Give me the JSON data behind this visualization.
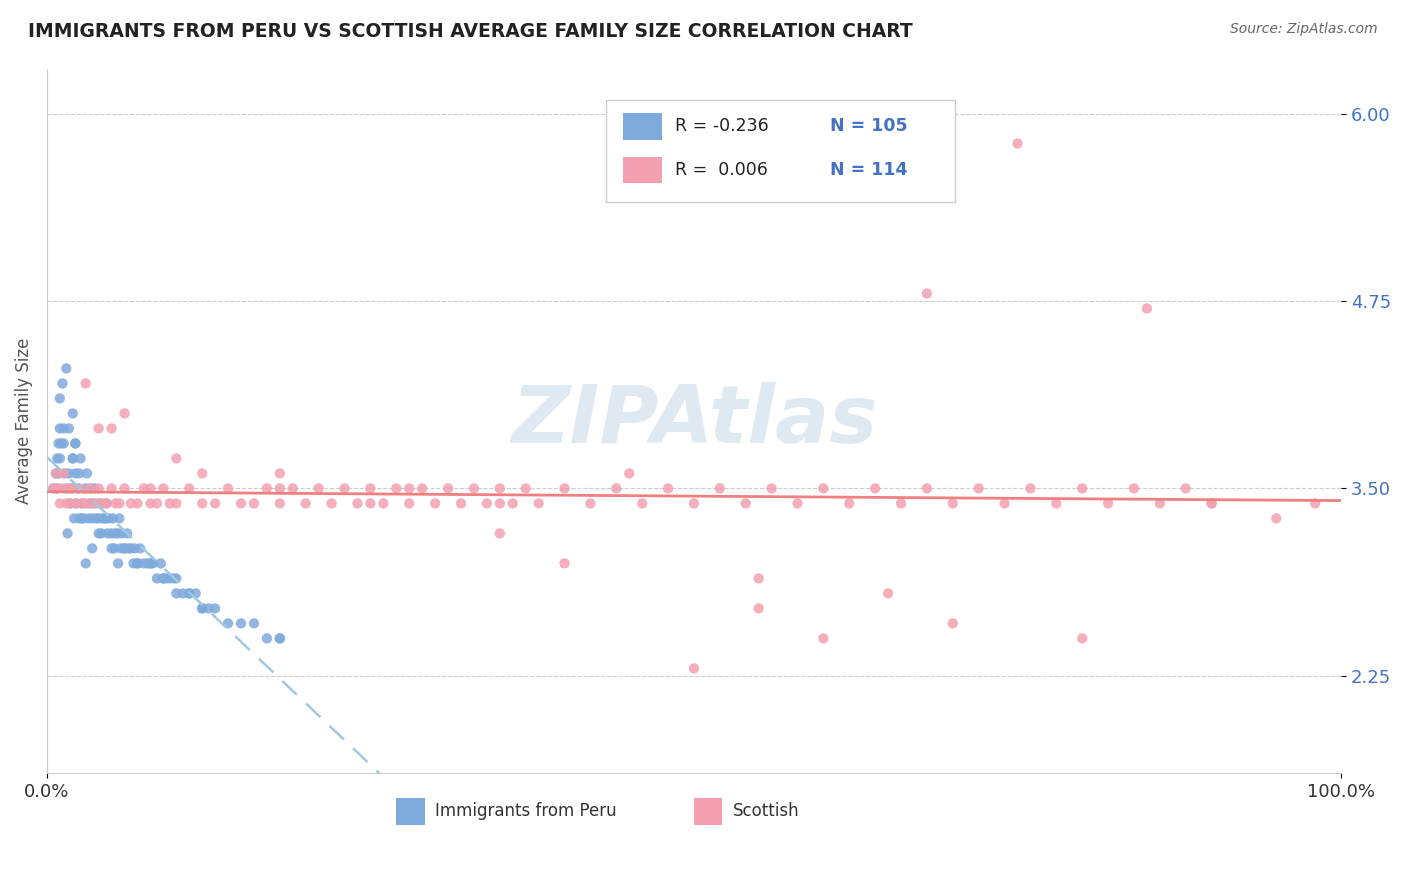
{
  "title": "IMMIGRANTS FROM PERU VS SCOTTISH AVERAGE FAMILY SIZE CORRELATION CHART",
  "source_text": "Source: ZipAtlas.com",
  "ylabel": "Average Family Size",
  "x_min": 0.0,
  "x_max": 1.0,
  "y_min": 1.6,
  "y_max": 6.3,
  "y_ticks": [
    2.25,
    3.5,
    4.75,
    6.0
  ],
  "x_tick_labels": [
    "0.0%",
    "100.0%"
  ],
  "watermark": "ZIPAtlas",
  "color_peru": "#7faadc",
  "color_scottish": "#f4a0b0",
  "color_peru_line": "#a0c8e0",
  "color_scottish_line": "#f08080",
  "background": "#ffffff",
  "peru_x": [
    0.005,
    0.007,
    0.008,
    0.009,
    0.01,
    0.01,
    0.012,
    0.013,
    0.014,
    0.015,
    0.016,
    0.017,
    0.018,
    0.019,
    0.02,
    0.02,
    0.021,
    0.022,
    0.022,
    0.023,
    0.024,
    0.025,
    0.026,
    0.027,
    0.028,
    0.03,
    0.031,
    0.032,
    0.033,
    0.034,
    0.035,
    0.036,
    0.037,
    0.038,
    0.04,
    0.041,
    0.042,
    0.043,
    0.045,
    0.046,
    0.047,
    0.048,
    0.05,
    0.051,
    0.052,
    0.053,
    0.055,
    0.056,
    0.057,
    0.058,
    0.06,
    0.062,
    0.063,
    0.065,
    0.067,
    0.068,
    0.07,
    0.072,
    0.075,
    0.078,
    0.08,
    0.082,
    0.085,
    0.088,
    0.09,
    0.092,
    0.095,
    0.098,
    0.1,
    0.105,
    0.11,
    0.115,
    0.12,
    0.125,
    0.13,
    0.14,
    0.15,
    0.16,
    0.17,
    0.18,
    0.008,
    0.009,
    0.01,
    0.011,
    0.013,
    0.015,
    0.017,
    0.02,
    0.022,
    0.025,
    0.028,
    0.03,
    0.035,
    0.04,
    0.045,
    0.05,
    0.055,
    0.06,
    0.07,
    0.08,
    0.09,
    0.1,
    0.11,
    0.12,
    0.18
  ],
  "peru_y": [
    3.5,
    3.6,
    3.7,
    3.8,
    3.9,
    4.1,
    4.2,
    3.8,
    3.6,
    4.3,
    3.2,
    3.9,
    3.4,
    3.5,
    3.7,
    4.0,
    3.3,
    3.6,
    3.8,
    3.4,
    3.5,
    3.6,
    3.7,
    3.3,
    3.4,
    3.5,
    3.6,
    3.3,
    3.4,
    3.5,
    3.3,
    3.4,
    3.5,
    3.3,
    3.3,
    3.4,
    3.2,
    3.3,
    3.3,
    3.4,
    3.2,
    3.3,
    3.2,
    3.3,
    3.1,
    3.2,
    3.2,
    3.3,
    3.1,
    3.2,
    3.1,
    3.2,
    3.1,
    3.1,
    3.0,
    3.1,
    3.0,
    3.1,
    3.0,
    3.0,
    3.0,
    3.0,
    2.9,
    3.0,
    2.9,
    2.9,
    2.9,
    2.9,
    2.8,
    2.8,
    2.8,
    2.8,
    2.7,
    2.7,
    2.7,
    2.6,
    2.6,
    2.6,
    2.5,
    2.5,
    3.5,
    3.6,
    3.7,
    3.8,
    3.9,
    3.5,
    3.6,
    3.7,
    3.8,
    3.3,
    3.3,
    3.0,
    3.1,
    3.2,
    3.3,
    3.1,
    3.0,
    3.1,
    3.0,
    3.0,
    2.9,
    2.9,
    2.8,
    2.7,
    2.5
  ],
  "scottish_x": [
    0.005,
    0.007,
    0.008,
    0.01,
    0.012,
    0.013,
    0.015,
    0.017,
    0.018,
    0.02,
    0.022,
    0.025,
    0.027,
    0.03,
    0.033,
    0.035,
    0.038,
    0.04,
    0.043,
    0.046,
    0.05,
    0.053,
    0.056,
    0.06,
    0.065,
    0.07,
    0.075,
    0.08,
    0.085,
    0.09,
    0.095,
    0.1,
    0.11,
    0.12,
    0.13,
    0.14,
    0.15,
    0.16,
    0.17,
    0.18,
    0.19,
    0.2,
    0.21,
    0.22,
    0.23,
    0.24,
    0.25,
    0.26,
    0.27,
    0.28,
    0.29,
    0.3,
    0.31,
    0.32,
    0.33,
    0.34,
    0.35,
    0.36,
    0.37,
    0.38,
    0.4,
    0.42,
    0.44,
    0.46,
    0.48,
    0.5,
    0.52,
    0.54,
    0.56,
    0.58,
    0.6,
    0.62,
    0.64,
    0.66,
    0.68,
    0.7,
    0.72,
    0.74,
    0.76,
    0.78,
    0.8,
    0.82,
    0.84,
    0.86,
    0.88,
    0.9,
    0.75,
    0.85,
    0.68,
    0.55,
    0.45,
    0.35,
    0.28,
    0.18,
    0.12,
    0.08,
    0.06,
    0.04,
    0.5,
    0.6,
    0.7,
    0.55,
    0.4,
    0.35,
    0.25,
    0.18,
    0.1,
    0.05,
    0.03,
    0.95,
    0.98,
    0.65,
    0.8,
    0.9
  ],
  "scottish_y": [
    3.5,
    3.6,
    3.5,
    3.4,
    3.5,
    3.6,
    3.4,
    3.5,
    3.4,
    3.5,
    3.4,
    3.5,
    3.4,
    3.4,
    3.5,
    3.4,
    3.4,
    3.5,
    3.4,
    3.4,
    3.5,
    3.4,
    3.4,
    3.5,
    3.4,
    3.4,
    3.5,
    3.4,
    3.4,
    3.5,
    3.4,
    3.4,
    3.5,
    3.4,
    3.4,
    3.5,
    3.4,
    3.4,
    3.5,
    3.4,
    3.5,
    3.4,
    3.5,
    3.4,
    3.5,
    3.4,
    3.5,
    3.4,
    3.5,
    3.4,
    3.5,
    3.4,
    3.5,
    3.4,
    3.5,
    3.4,
    3.5,
    3.4,
    3.5,
    3.4,
    3.5,
    3.4,
    3.5,
    3.4,
    3.5,
    3.4,
    3.5,
    3.4,
    3.5,
    3.4,
    3.5,
    3.4,
    3.5,
    3.4,
    3.5,
    3.4,
    3.5,
    3.4,
    3.5,
    3.4,
    3.5,
    3.4,
    3.5,
    3.4,
    3.5,
    3.4,
    5.8,
    4.7,
    4.8,
    2.9,
    3.6,
    3.4,
    3.5,
    3.6,
    3.6,
    3.5,
    4.0,
    3.9,
    2.3,
    2.5,
    2.6,
    2.7,
    3.0,
    3.2,
    3.4,
    3.5,
    3.7,
    3.9,
    4.2,
    3.3,
    3.4,
    2.8,
    2.5,
    3.4
  ]
}
